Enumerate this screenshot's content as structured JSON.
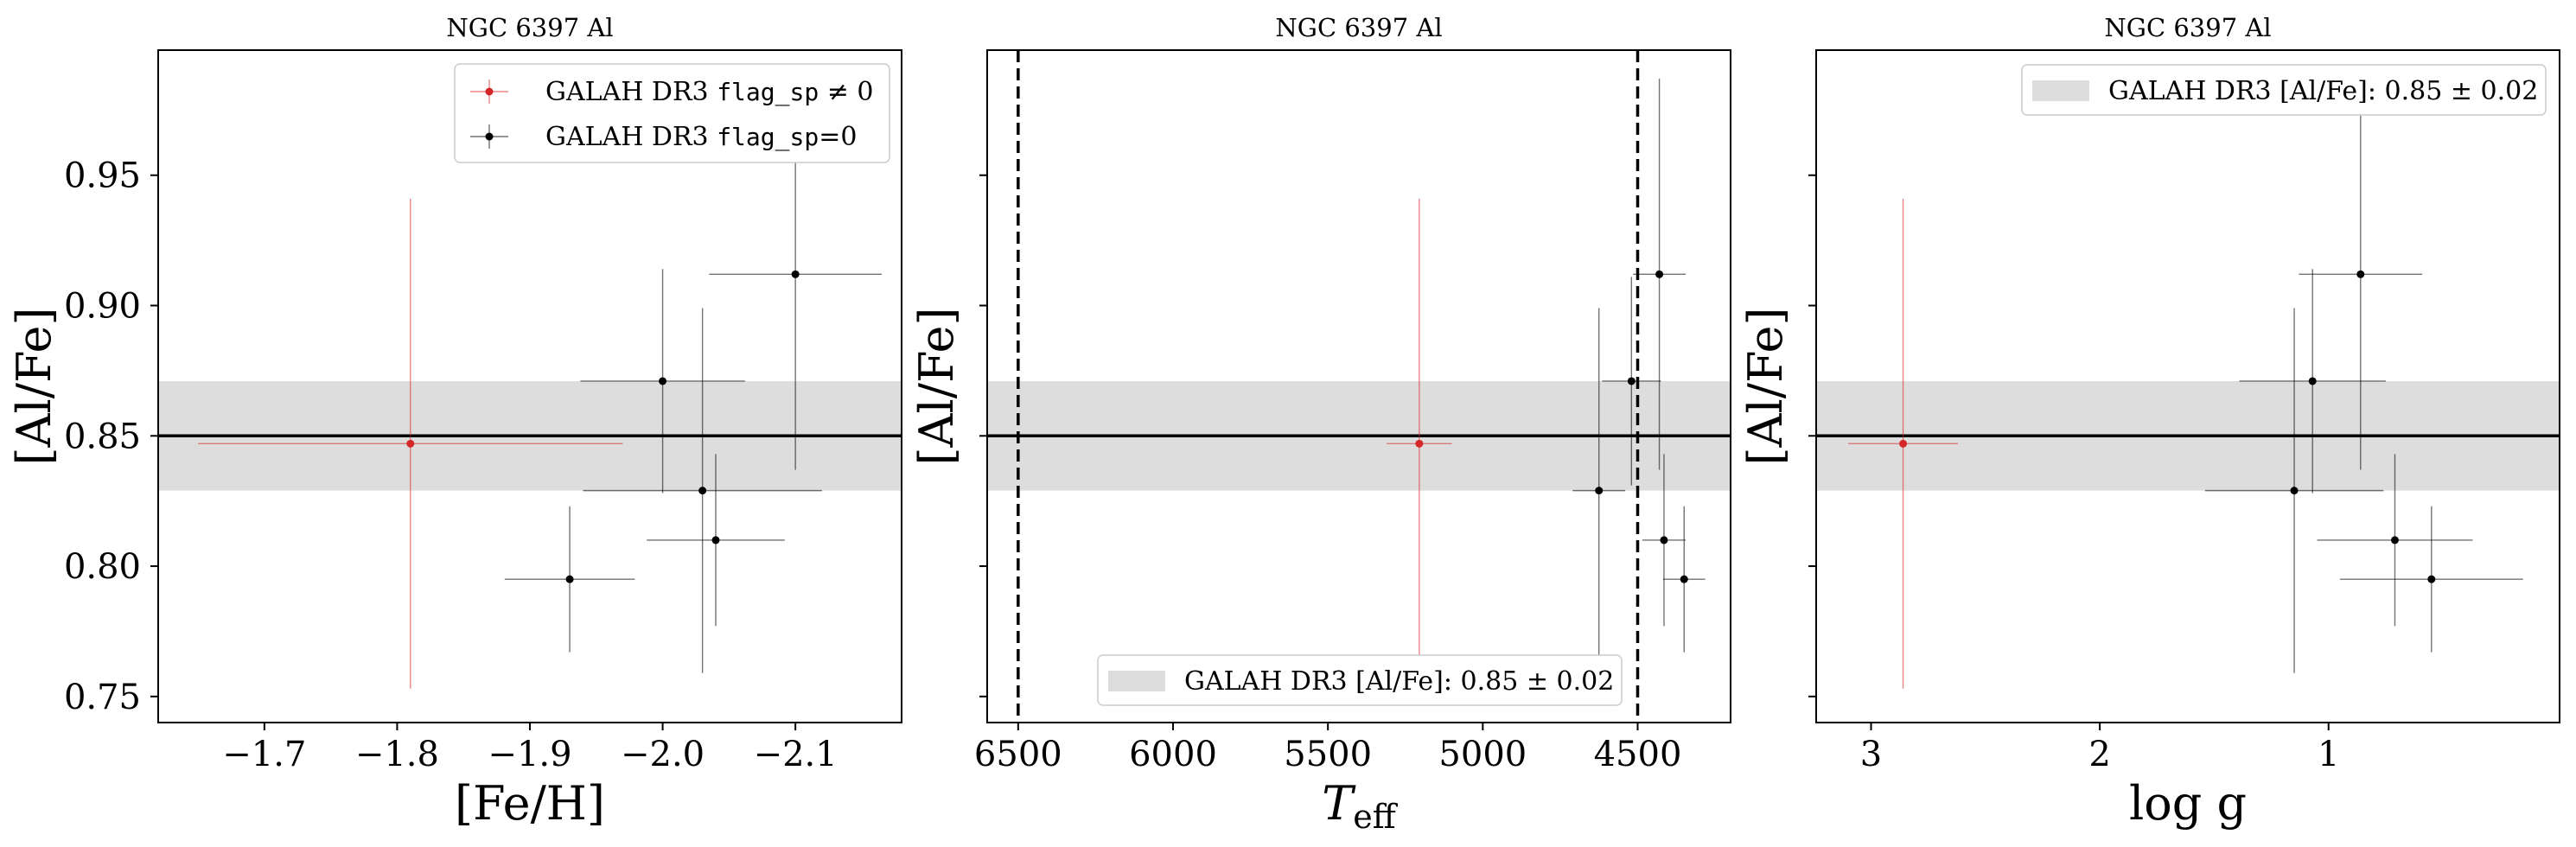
{
  "colors": {
    "flagged": "#d62728",
    "unflagged": "#000000",
    "band": "#dddddd",
    "axis": "#000000"
  },
  "chart_data": [
    {
      "type": "scatter",
      "title": "NGC 6397 Al",
      "xlabel": "[Fe/H]",
      "ylabel": "[Al/Fe]",
      "xlim": [
        -1.62,
        -2.18
      ],
      "ylim": [
        0.74,
        0.998
      ],
      "xticks": [
        -1.7,
        -1.8,
        -1.9,
        -2.0,
        -2.1
      ],
      "xtick_labels": [
        "−1.7",
        "−1.8",
        "−1.9",
        "−2.0",
        "−2.1"
      ],
      "yticks": [
        0.75,
        0.8,
        0.85,
        0.9,
        0.95
      ],
      "ytick_labels": [
        "0.75",
        "0.80",
        "0.85",
        "0.90",
        "0.95"
      ],
      "mean_line": 0.85,
      "band": [
        0.829,
        0.871
      ],
      "legend": {
        "placement": "top-right",
        "entries": [
          {
            "prefix": "GALAH DR3 ",
            "code": "flag_sp",
            "suffix": " ≠ 0",
            "series": "flagged"
          },
          {
            "prefix": "GALAH DR3 ",
            "code": "flag_sp",
            "suffix": "=0",
            "series": "unflagged"
          }
        ]
      },
      "series": [
        {
          "key": "flagged",
          "points": [
            {
              "x": -1.81,
              "y": 0.847,
              "xerr": 0.16,
              "yerr": 0.094
            }
          ]
        },
        {
          "key": "unflagged",
          "points": [
            {
              "x": -2.1,
              "y": 0.912,
              "xerr": 0.065,
              "yerr": 0.075
            },
            {
              "x": -2.0,
              "y": 0.871,
              "xerr": 0.062,
              "yerr": 0.043
            },
            {
              "x": -2.03,
              "y": 0.829,
              "xerr": 0.09,
              "yerr": 0.07
            },
            {
              "x": -2.04,
              "y": 0.81,
              "xerr": 0.052,
              "yerr": 0.033
            },
            {
              "x": -1.93,
              "y": 0.795,
              "xerr": 0.049,
              "yerr": 0.028
            }
          ]
        }
      ]
    },
    {
      "type": "scatter",
      "title": "NGC 6397 Al",
      "xlabel": "T",
      "xlabel_sub": "eff",
      "ylabel": "[Al/Fe]",
      "xlim": [
        6600,
        4200
      ],
      "ylim": [
        0.74,
        0.998
      ],
      "xticks": [
        6500,
        6000,
        5500,
        5000,
        4500
      ],
      "xtick_labels": [
        "6500",
        "6000",
        "5500",
        "5000",
        "4500"
      ],
      "yticks": [
        0.75,
        0.8,
        0.85,
        0.9,
        0.95
      ],
      "show_ytick_labels": false,
      "vlines": [
        6500,
        4500
      ],
      "mean_line": 0.85,
      "band": [
        0.829,
        0.871
      ],
      "legend": {
        "placement": "lower-center",
        "entries": [
          {
            "text": "GALAH DR3 [Al/Fe]: 0.85 ± 0.02",
            "series": "band"
          }
        ]
      },
      "series": [
        {
          "key": "flagged",
          "points": [
            {
              "x": 5205,
              "y": 0.847,
              "xerr": 105,
              "yerr": 0.094
            }
          ]
        },
        {
          "key": "unflagged",
          "points": [
            {
              "x": 4430,
              "y": 0.912,
              "xerr": 85,
              "yerr": 0.075
            },
            {
              "x": 4520,
              "y": 0.871,
              "xerr": 95,
              "yerr": 0.04
            },
            {
              "x": 4625,
              "y": 0.829,
              "xerr": 85,
              "yerr": 0.07
            },
            {
              "x": 4415,
              "y": 0.81,
              "xerr": 70,
              "yerr": 0.033
            },
            {
              "x": 4350,
              "y": 0.795,
              "xerr": 68,
              "yerr": 0.028
            }
          ]
        }
      ]
    },
    {
      "type": "scatter",
      "title": "NGC 6397 Al",
      "xlabel": "log g",
      "ylabel": "[Al/Fe]",
      "xlim": [
        3.24,
        -0.01
      ],
      "ylim": [
        0.74,
        0.998
      ],
      "xticks": [
        3,
        2,
        1
      ],
      "xtick_labels": [
        "3",
        "2",
        "1"
      ],
      "yticks": [
        0.75,
        0.8,
        0.85,
        0.9,
        0.95
      ],
      "show_ytick_labels": false,
      "mean_line": 0.85,
      "band": [
        0.829,
        0.871
      ],
      "legend": {
        "placement": "top-right",
        "entries": [
          {
            "text": "GALAH DR3 [Al/Fe]: 0.85 ± 0.02",
            "series": "band"
          }
        ]
      },
      "series": [
        {
          "key": "flagged",
          "points": [
            {
              "x": 2.86,
              "y": 0.847,
              "xerr": 0.24,
              "yerr": 0.094
            }
          ]
        },
        {
          "key": "unflagged",
          "points": [
            {
              "x": 0.86,
              "y": 0.912,
              "xerr": 0.27,
              "yerr": 0.075
            },
            {
              "x": 1.07,
              "y": 0.871,
              "xerr": 0.32,
              "yerr": 0.043
            },
            {
              "x": 1.15,
              "y": 0.829,
              "xerr": 0.39,
              "yerr": 0.07
            },
            {
              "x": 0.71,
              "y": 0.81,
              "xerr": 0.34,
              "yerr": 0.033
            },
            {
              "x": 0.55,
              "y": 0.795,
              "xerr": 0.4,
              "yerr": 0.028
            }
          ]
        }
      ]
    }
  ]
}
